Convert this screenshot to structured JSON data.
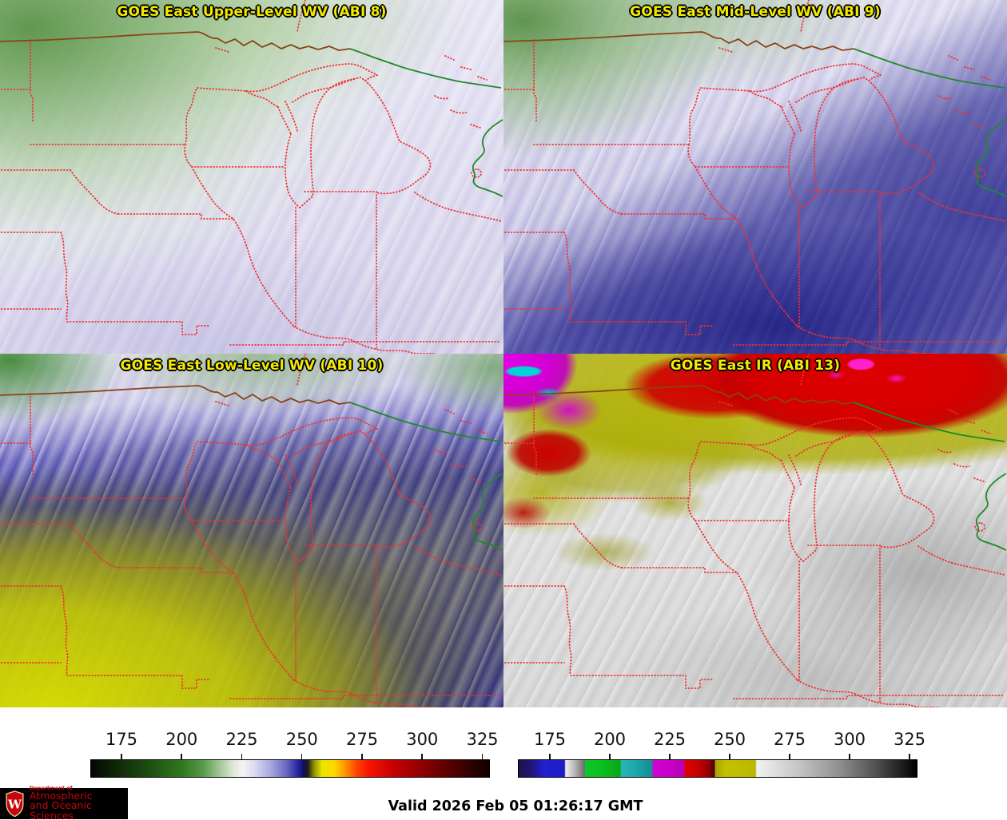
{
  "panels": [
    {
      "id": "abi8",
      "title": "GOES East Upper-Level WV (ABI 8)"
    },
    {
      "id": "abi9",
      "title": "GOES East Mid-Level WV (ABI 9)"
    },
    {
      "id": "abi10",
      "title": "GOES East Low-Level WV (ABI 10)"
    },
    {
      "id": "abi13",
      "title": "GOES East IR (ABI 13)"
    }
  ],
  "colorbars": {
    "left": {
      "name": "water-vapor-brightness-temperature-scale",
      "ticks": [
        "175",
        "200",
        "225",
        "250",
        "275",
        "300",
        "325"
      ],
      "tick_positions_pct": [
        7.8,
        22.85,
        37.9,
        52.95,
        68.0,
        83.05,
        98.1
      ],
      "gradient": [
        [
          0,
          "#050505"
        ],
        [
          4,
          "#0a1c06"
        ],
        [
          8,
          "#122f0a"
        ],
        [
          15,
          "#1f4f12"
        ],
        [
          23,
          "#2f7a1d"
        ],
        [
          28,
          "#57994a"
        ],
        [
          32,
          "#9dc392"
        ],
        [
          36,
          "#e2ead9"
        ],
        [
          38,
          "#f4f4f4"
        ],
        [
          41,
          "#dcdaf0"
        ],
        [
          45,
          "#aaa8e0"
        ],
        [
          49,
          "#6a68c4"
        ],
        [
          52,
          "#2726a0"
        ],
        [
          53.5,
          "#0d0c62"
        ],
        [
          54.5,
          "#22220e"
        ],
        [
          56,
          "#8f8f04"
        ],
        [
          58,
          "#e8e400"
        ],
        [
          61,
          "#ffd800"
        ],
        [
          64,
          "#ff9000"
        ],
        [
          67,
          "#ff3c00"
        ],
        [
          70,
          "#f41400"
        ],
        [
          76,
          "#c80000"
        ],
        [
          83,
          "#8f0000"
        ],
        [
          90,
          "#580000"
        ],
        [
          96,
          "#2a0000"
        ],
        [
          100,
          "#140000"
        ]
      ]
    },
    "right": {
      "name": "ir-brightness-temperature-scale",
      "ticks": [
        "175",
        "200",
        "225",
        "250",
        "275",
        "300",
        "325"
      ],
      "tick_positions_pct": [
        8.0,
        23.0,
        38.0,
        53.0,
        68.0,
        83.0,
        98.0
      ],
      "gradient": [
        [
          0,
          "#1c1150"
        ],
        [
          3,
          "#231670"
        ],
        [
          5,
          "#2018a8"
        ],
        [
          6,
          "#2020cc"
        ],
        [
          11.5,
          "#1d1dc8"
        ],
        [
          11.8,
          "#f0f0f0"
        ],
        [
          14,
          "#b9b9b9"
        ],
        [
          16.5,
          "#6e6e6e"
        ],
        [
          16.8,
          "#0ac828"
        ],
        [
          21,
          "#0bbf20"
        ],
        [
          25.5,
          "#08a818"
        ],
        [
          25.8,
          "#2ab4b4"
        ],
        [
          29,
          "#1fa8ae"
        ],
        [
          33.5,
          "#128c96"
        ],
        [
          33.8,
          "#d400d4"
        ],
        [
          38,
          "#c800c8"
        ],
        [
          41.5,
          "#b400b4"
        ],
        [
          41.8,
          "#e00000"
        ],
        [
          45,
          "#c80000"
        ],
        [
          48,
          "#8c0000"
        ],
        [
          49.2,
          "#4a0000"
        ],
        [
          49.4,
          "#a8a400"
        ],
        [
          52,
          "#c4c000"
        ],
        [
          59.5,
          "#bcb800"
        ],
        [
          59.8,
          "#f2f2f2"
        ],
        [
          70,
          "#c6c6c6"
        ],
        [
          80,
          "#939393"
        ],
        [
          90,
          "#4f4f4f"
        ],
        [
          100,
          "#000000"
        ]
      ]
    }
  },
  "footer": {
    "valid_label": "Valid 2026 Feb 05 01:26:17 GMT",
    "logo": {
      "dept": "Department of",
      "line1": "Atmospheric",
      "line2": "and Oceanic Sciences",
      "monogram": "W"
    }
  },
  "colors": {
    "title_text": "#f2ea00",
    "state_boundary": "#f23030",
    "canada_border": "#8a4416",
    "water_boundary": "#1e8a28",
    "logo_red": "#c5050c"
  }
}
